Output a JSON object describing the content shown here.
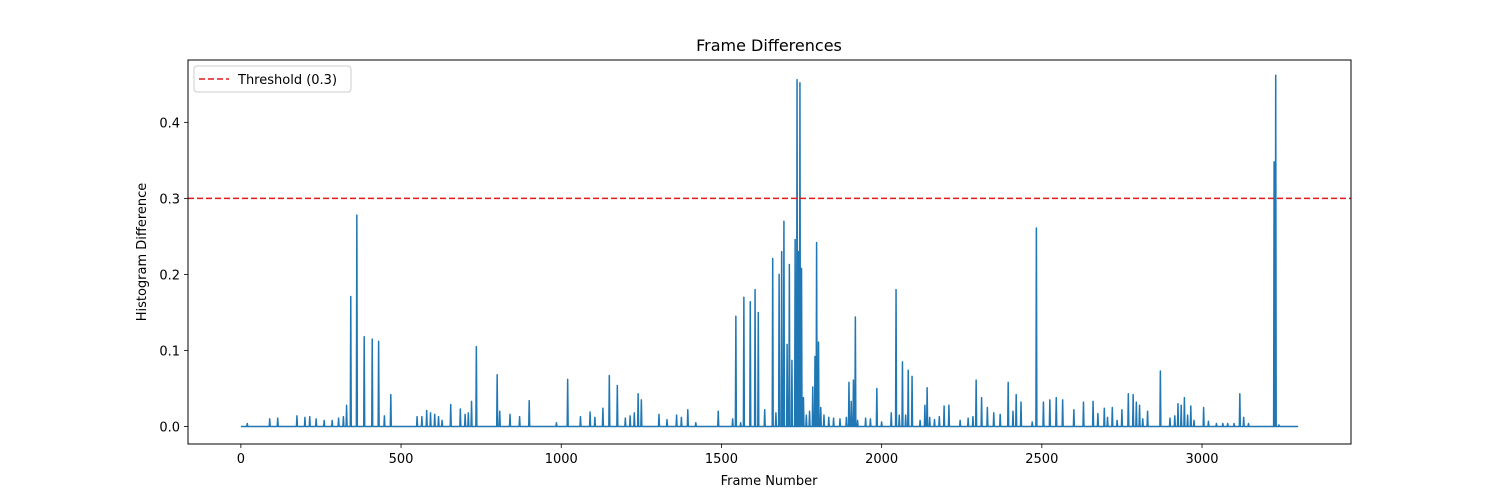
{
  "chart_data": {
    "type": "line",
    "title": "Frame Differences",
    "xlabel": "Frame Number",
    "ylabel": "Histogram Difference",
    "xlim": [
      -165,
      3465
    ],
    "ylim": [
      -0.023,
      0.482
    ],
    "xticks": [
      0,
      500,
      1000,
      1500,
      2000,
      2500,
      3000
    ],
    "yticks": [
      0.0,
      0.1,
      0.2,
      0.3,
      0.4
    ],
    "ytick_labels": [
      "0.0",
      "0.1",
      "0.2",
      "0.3",
      "0.4"
    ],
    "grid": false,
    "legend_position": "top-left",
    "threshold": {
      "name": "Threshold (0.3)",
      "value": 0.3,
      "color": "#e41a1c",
      "style": "dashed"
    },
    "series": [
      {
        "color": "#1f77b4",
        "baseline": 0.0,
        "x_range": [
          0,
          3300
        ],
        "spikes": [
          [
            20,
            0.004
          ],
          [
            90,
            0.01
          ],
          [
            115,
            0.011
          ],
          [
            175,
            0.014
          ],
          [
            200,
            0.012
          ],
          [
            215,
            0.013
          ],
          [
            235,
            0.01
          ],
          [
            260,
            0.008
          ],
          [
            285,
            0.008
          ],
          [
            305,
            0.011
          ],
          [
            320,
            0.013
          ],
          [
            330,
            0.028
          ],
          [
            343,
            0.171
          ],
          [
            362,
            0.278
          ],
          [
            385,
            0.118
          ],
          [
            410,
            0.115
          ],
          [
            430,
            0.112
          ],
          [
            448,
            0.014
          ],
          [
            468,
            0.042
          ],
          [
            550,
            0.013
          ],
          [
            565,
            0.013
          ],
          [
            580,
            0.021
          ],
          [
            592,
            0.018
          ],
          [
            605,
            0.016
          ],
          [
            617,
            0.013
          ],
          [
            628,
            0.008
          ],
          [
            655,
            0.029
          ],
          [
            685,
            0.023
          ],
          [
            700,
            0.016
          ],
          [
            710,
            0.018
          ],
          [
            720,
            0.033
          ],
          [
            735,
            0.105
          ],
          [
            800,
            0.068
          ],
          [
            808,
            0.02
          ],
          [
            840,
            0.016
          ],
          [
            870,
            0.013
          ],
          [
            900,
            0.034
          ],
          [
            985,
            0.005
          ],
          [
            1020,
            0.062
          ],
          [
            1060,
            0.013
          ],
          [
            1090,
            0.019
          ],
          [
            1105,
            0.012
          ],
          [
            1130,
            0.024
          ],
          [
            1150,
            0.067
          ],
          [
            1175,
            0.054
          ],
          [
            1200,
            0.011
          ],
          [
            1215,
            0.014
          ],
          [
            1228,
            0.018
          ],
          [
            1240,
            0.043
          ],
          [
            1250,
            0.035
          ],
          [
            1305,
            0.016
          ],
          [
            1330,
            0.009
          ],
          [
            1360,
            0.015
          ],
          [
            1375,
            0.012
          ],
          [
            1395,
            0.022
          ],
          [
            1420,
            0.005
          ],
          [
            1490,
            0.02
          ],
          [
            1535,
            0.01
          ],
          [
            1545,
            0.145
          ],
          [
            1560,
            0.005
          ],
          [
            1570,
            0.17
          ],
          [
            1590,
            0.164
          ],
          [
            1605,
            0.18
          ],
          [
            1615,
            0.15
          ],
          [
            1635,
            0.022
          ],
          [
            1660,
            0.221
          ],
          [
            1670,
            0.018
          ],
          [
            1680,
            0.2
          ],
          [
            1688,
            0.23
          ],
          [
            1695,
            0.27
          ],
          [
            1705,
            0.108
          ],
          [
            1712,
            0.213
          ],
          [
            1720,
            0.087
          ],
          [
            1730,
            0.246
          ],
          [
            1736,
            0.456
          ],
          [
            1740,
            0.23
          ],
          [
            1745,
            0.452
          ],
          [
            1750,
            0.208
          ],
          [
            1756,
            0.038
          ],
          [
            1765,
            0.015
          ],
          [
            1775,
            0.02
          ],
          [
            1785,
            0.052
          ],
          [
            1792,
            0.092
          ],
          [
            1797,
            0.242
          ],
          [
            1803,
            0.111
          ],
          [
            1810,
            0.025
          ],
          [
            1820,
            0.015
          ],
          [
            1835,
            0.012
          ],
          [
            1850,
            0.011
          ],
          [
            1870,
            0.01
          ],
          [
            1890,
            0.012
          ],
          [
            1898,
            0.058
          ],
          [
            1905,
            0.033
          ],
          [
            1912,
            0.061
          ],
          [
            1918,
            0.144
          ],
          [
            1925,
            0.008
          ],
          [
            1950,
            0.011
          ],
          [
            1965,
            0.01
          ],
          [
            1985,
            0.05
          ],
          [
            2000,
            0.006
          ],
          [
            2030,
            0.018
          ],
          [
            2045,
            0.18
          ],
          [
            2055,
            0.015
          ],
          [
            2065,
            0.085
          ],
          [
            2075,
            0.015
          ],
          [
            2083,
            0.074
          ],
          [
            2095,
            0.066
          ],
          [
            2120,
            0.008
          ],
          [
            2135,
            0.028
          ],
          [
            2142,
            0.051
          ],
          [
            2150,
            0.012
          ],
          [
            2165,
            0.009
          ],
          [
            2180,
            0.013
          ],
          [
            2195,
            0.027
          ],
          [
            2210,
            0.028
          ],
          [
            2245,
            0.008
          ],
          [
            2270,
            0.011
          ],
          [
            2285,
            0.013
          ],
          [
            2295,
            0.061
          ],
          [
            2312,
            0.038
          ],
          [
            2330,
            0.025
          ],
          [
            2350,
            0.018
          ],
          [
            2370,
            0.016
          ],
          [
            2395,
            0.058
          ],
          [
            2410,
            0.02
          ],
          [
            2420,
            0.042
          ],
          [
            2435,
            0.032
          ],
          [
            2470,
            0.006
          ],
          [
            2483,
            0.261
          ],
          [
            2505,
            0.032
          ],
          [
            2525,
            0.035
          ],
          [
            2545,
            0.038
          ],
          [
            2565,
            0.035
          ],
          [
            2600,
            0.022
          ],
          [
            2630,
            0.032
          ],
          [
            2660,
            0.033
          ],
          [
            2675,
            0.017
          ],
          [
            2695,
            0.024
          ],
          [
            2705,
            0.012
          ],
          [
            2720,
            0.025
          ],
          [
            2735,
            0.008
          ],
          [
            2750,
            0.022
          ],
          [
            2770,
            0.043
          ],
          [
            2785,
            0.042
          ],
          [
            2795,
            0.032
          ],
          [
            2805,
            0.028
          ],
          [
            2815,
            0.01
          ],
          [
            2830,
            0.02
          ],
          [
            2870,
            0.073
          ],
          [
            2900,
            0.011
          ],
          [
            2915,
            0.014
          ],
          [
            2925,
            0.03
          ],
          [
            2935,
            0.028
          ],
          [
            2945,
            0.038
          ],
          [
            2955,
            0.015
          ],
          [
            2965,
            0.027
          ],
          [
            2975,
            0.008
          ],
          [
            3005,
            0.025
          ],
          [
            3020,
            0.007
          ],
          [
            3045,
            0.004
          ],
          [
            3065,
            0.004
          ],
          [
            3080,
            0.004
          ],
          [
            3100,
            0.004
          ],
          [
            3118,
            0.043
          ],
          [
            3130,
            0.012
          ],
          [
            3145,
            0.004
          ],
          [
            3225,
            0.348
          ],
          [
            3230,
            0.462
          ],
          [
            3240,
            0.002
          ]
        ]
      }
    ]
  }
}
